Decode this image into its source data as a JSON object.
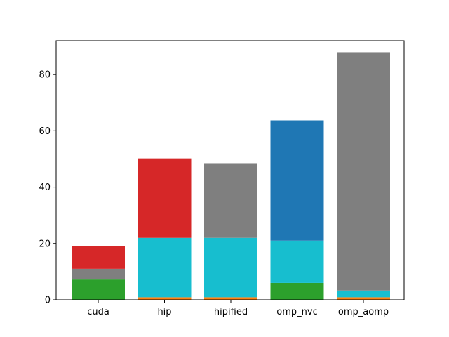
{
  "chart_data": {
    "type": "bar",
    "stacked": true,
    "categories": [
      "cuda",
      "hip",
      "hipified",
      "omp_nvc",
      "omp_aomp"
    ],
    "ylim": [
      0,
      92
    ],
    "yticks": [
      0,
      20,
      40,
      60,
      80
    ],
    "ytick_labels": [
      "0",
      "20",
      "40",
      "60",
      "80"
    ],
    "stacks": [
      [
        {
          "value": 7.2,
          "color": "#2ca02c"
        },
        {
          "value": 3.8,
          "color": "#7f7f7f"
        },
        {
          "value": 8.0,
          "color": "#d62728"
        }
      ],
      [
        {
          "value": 0.9,
          "color": "#ff7f0e"
        },
        {
          "value": 21.1,
          "color": "#17becf"
        },
        {
          "value": 28.2,
          "color": "#d62728"
        }
      ],
      [
        {
          "value": 0.9,
          "color": "#ff7f0e"
        },
        {
          "value": 21.1,
          "color": "#17becf"
        },
        {
          "value": 26.5,
          "color": "#7f7f7f"
        }
      ],
      [
        {
          "value": 6.0,
          "color": "#2ca02c"
        },
        {
          "value": 15.0,
          "color": "#17becf"
        },
        {
          "value": 42.7,
          "color": "#1f77b4"
        }
      ],
      [
        {
          "value": 0.9,
          "color": "#ff7f0e"
        },
        {
          "value": 2.4,
          "color": "#17becf"
        },
        {
          "value": 84.6,
          "color": "#7f7f7f"
        }
      ]
    ]
  }
}
